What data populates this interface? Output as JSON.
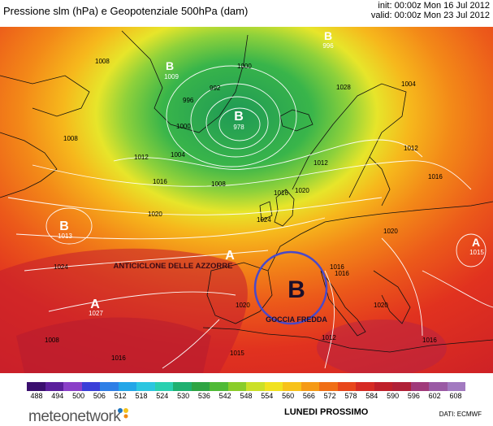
{
  "header": {
    "title": "Pressione slm (hPa) e Geopotenziale 500hPa (dam)",
    "init": "init: 00:00z Mon 16 Jul 2012",
    "valid": "valid: 00:00z Mon 23 Jul 2012"
  },
  "map": {
    "region": "North Atlantic and Europe",
    "annotations": {
      "anticyclone": "ANTICICLONE DELLE AZZORRE",
      "cold_drop_letter": "B",
      "cold_drop": "GOCCIA FREDDA"
    },
    "pressure_centers": [
      {
        "type": "B",
        "value": "996"
      },
      {
        "type": "B",
        "value": "1009"
      },
      {
        "type": "B",
        "value": "978"
      },
      {
        "type": "B",
        "value": "1013"
      },
      {
        "type": "A",
        "value": "1027"
      },
      {
        "type": "A",
        "value": ""
      },
      {
        "type": "A",
        "value": "1015"
      }
    ],
    "isobar_labels": [
      "1008",
      "1000",
      "996",
      "992",
      "1000",
      "1004",
      "1008",
      "1012",
      "1016",
      "1020",
      "1024",
      "1028",
      "1004",
      "1008",
      "1012",
      "1016",
      "1020",
      "1024",
      "1016",
      "1012",
      "1020",
      "1020",
      "1016",
      "1020",
      "1016",
      "1016",
      "1015",
      "1012",
      "1008",
      "1016"
    ]
  },
  "scale": {
    "ticks": [
      "488",
      "494",
      "500",
      "506",
      "512",
      "518",
      "524",
      "530",
      "536",
      "542",
      "548",
      "554",
      "560",
      "566",
      "572",
      "578",
      "584",
      "590",
      "596",
      "602",
      "608"
    ],
    "colors": [
      "#3a0f6e",
      "#5b1f9c",
      "#8a3fc8",
      "#3a3fd8",
      "#2f7fe6",
      "#23a6e8",
      "#2cc6e0",
      "#2ad0b0",
      "#1fb070",
      "#2ea443",
      "#4fba36",
      "#8acd2a",
      "#cbe028",
      "#f1e21f",
      "#f7c21a",
      "#f59a16",
      "#f06e15",
      "#e8461b",
      "#d62a23",
      "#bf1f2a",
      "#b02037",
      "#a03a7a",
      "#9a5aa4",
      "#a27ac0"
    ]
  },
  "footer": {
    "brand": "meteonetwork",
    "brand_dot_colors": [
      "#1e73be",
      "#f4c21d",
      "#f08a14"
    ],
    "day": "LUNEDI PROSSIMO",
    "source": "DATI: ECMWF"
  }
}
